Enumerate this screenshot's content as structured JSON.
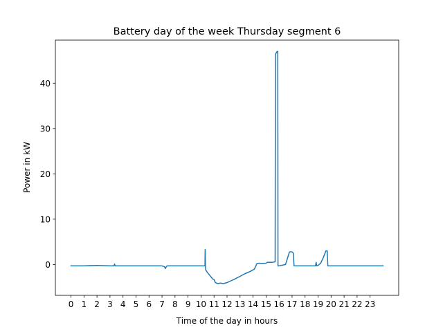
{
  "chart_data": {
    "type": "line",
    "title": "Battery day of the week Thursday segment 6",
    "xlabel": "Time of the day in hours",
    "ylabel": "Power in kW",
    "xlim": [
      -1.2,
      25.2
    ],
    "ylim": [
      -6.8,
      49.5
    ],
    "grid": false,
    "legend": "none",
    "x_ticks": [
      0,
      1,
      2,
      3,
      4,
      5,
      6,
      7,
      8,
      9,
      10,
      11,
      12,
      13,
      14,
      15,
      16,
      17,
      18,
      19,
      20,
      21,
      22,
      23
    ],
    "y_ticks": [
      0,
      10,
      20,
      30,
      40
    ],
    "series": [
      {
        "color": "#1f77b4",
        "x": [
          0,
          1,
          2,
          3,
          3.3,
          3.35,
          3.4,
          4,
          5,
          6,
          7,
          7.2,
          7.25,
          7.35,
          7.4,
          7.5,
          8,
          9,
          10,
          10.3,
          10.32,
          10.34,
          10.36,
          10.5,
          10.7,
          10.9,
          11,
          11.1,
          11.3,
          11.5,
          11.7,
          12,
          12.3,
          12.6,
          13,
          13.4,
          13.8,
          14.1,
          14.3,
          14.5,
          14.6,
          15,
          15.1,
          15.3,
          15.5,
          15.7,
          15.72,
          15.74,
          15.85,
          15.9,
          15.92,
          16,
          16.5,
          16.8,
          17,
          17.1,
          17.15,
          18,
          18.8,
          18.85,
          18.9,
          19,
          19.2,
          19.4,
          19.6,
          19.7,
          19.75,
          20,
          21,
          22,
          23,
          24
        ],
        "y": [
          -0.3,
          -0.3,
          -0.2,
          -0.3,
          -0.3,
          0.1,
          -0.3,
          -0.3,
          -0.3,
          -0.3,
          -0.3,
          -0.5,
          -0.9,
          -0.4,
          -0.3,
          -0.3,
          -0.3,
          -0.3,
          -0.3,
          -0.3,
          3.3,
          -0.3,
          -1.2,
          -1.8,
          -2.5,
          -3.2,
          -3.3,
          -4.0,
          -4.2,
          -4.1,
          -4.2,
          -4.0,
          -3.6,
          -3.2,
          -2.6,
          -2.0,
          -1.5,
          -1.0,
          0.2,
          0.3,
          0.2,
          0.3,
          0.5,
          0.5,
          0.5,
          0.6,
          46.0,
          46.5,
          47.0,
          47.0,
          -0.3,
          -0.3,
          0.0,
          2.8,
          2.8,
          2.5,
          -0.3,
          -0.3,
          -0.3,
          0.5,
          -0.3,
          -0.2,
          0.3,
          1.5,
          3.0,
          3.0,
          -0.3,
          -0.3,
          -0.3,
          -0.3,
          -0.3,
          -0.3
        ]
      }
    ]
  }
}
